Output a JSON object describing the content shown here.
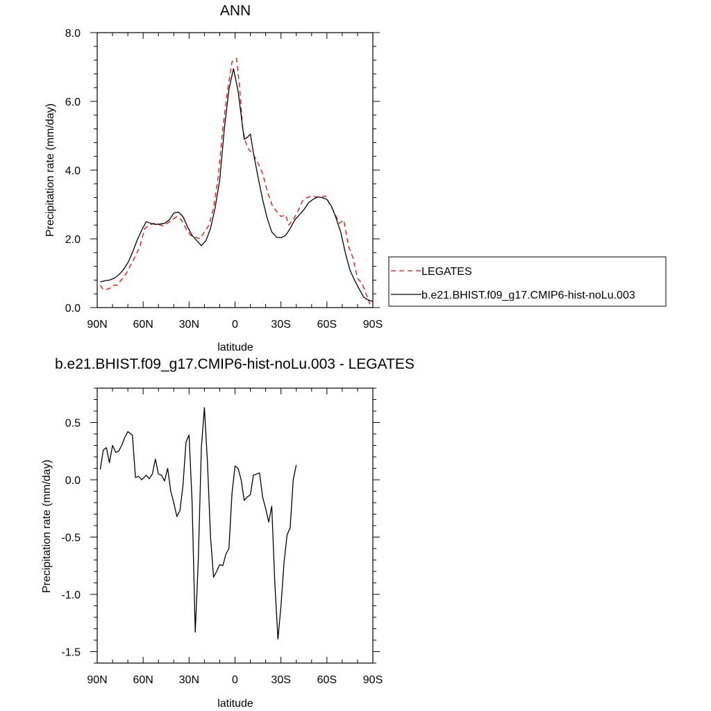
{
  "chart_data": [
    {
      "type": "line",
      "title": "ANN",
      "xlabel": "latitude",
      "ylabel": "Precipitation rate (mm/day)",
      "xlim": [
        90,
        -90
      ],
      "ylim": [
        0,
        8
      ],
      "xticks": [
        {
          "value": 90,
          "label": "90N"
        },
        {
          "value": 60,
          "label": "60N"
        },
        {
          "value": 30,
          "label": "30N"
        },
        {
          "value": 0,
          "label": "0"
        },
        {
          "value": -30,
          "label": "30S"
        },
        {
          "value": -60,
          "label": "60S"
        },
        {
          "value": -90,
          "label": "90S"
        }
      ],
      "yticks": [
        {
          "value": 0,
          "label": "0.0"
        },
        {
          "value": 2,
          "label": "2.0"
        },
        {
          "value": 4,
          "label": "4.0"
        },
        {
          "value": 6,
          "label": "6.0"
        },
        {
          "value": 8,
          "label": "8.0"
        }
      ],
      "legend_position": "right",
      "grid": false,
      "series": [
        {
          "name": "LEGATES",
          "color": "#ff0000",
          "dash": "dashed",
          "points": [
            [
              88,
              0.65
            ],
            [
              86,
              0.52
            ],
            [
              82,
              0.55
            ],
            [
              80,
              0.65
            ],
            [
              77,
              0.65
            ],
            [
              74,
              0.82
            ],
            [
              71,
              1.0
            ],
            [
              68,
              1.25
            ],
            [
              65,
              1.5
            ],
            [
              62,
              1.8
            ],
            [
              59,
              2.3
            ],
            [
              56,
              2.4
            ],
            [
              53,
              2.45
            ],
            [
              50,
              2.42
            ],
            [
              47,
              2.38
            ],
            [
              44,
              2.46
            ],
            [
              41,
              2.55
            ],
            [
              38,
              2.65
            ],
            [
              35,
              2.55
            ],
            [
              32,
              2.3
            ],
            [
              29,
              2.1
            ],
            [
              26,
              2.05
            ],
            [
              23,
              2.0
            ],
            [
              20,
              2.2
            ],
            [
              17,
              2.4
            ],
            [
              14,
              2.9
            ],
            [
              11,
              3.8
            ],
            [
              8,
              5.2
            ],
            [
              5,
              6.3
            ],
            [
              2,
              7.15
            ],
            [
              -1,
              7.25
            ],
            [
              -3,
              6.4
            ],
            [
              -5,
              5.2
            ],
            [
              -7,
              4.8
            ],
            [
              -9,
              4.6
            ],
            [
              -12,
              4.45
            ],
            [
              -15,
              4.2
            ],
            [
              -18,
              3.9
            ],
            [
              -21,
              3.4
            ],
            [
              -24,
              3.0
            ],
            [
              -27,
              2.8
            ],
            [
              -30,
              2.65
            ],
            [
              -33,
              2.7
            ],
            [
              -35,
              2.4
            ],
            [
              -38,
              2.55
            ],
            [
              -41,
              2.8
            ],
            [
              -44,
              3.1
            ],
            [
              -47,
              3.2
            ],
            [
              -50,
              3.25
            ],
            [
              -53,
              3.22
            ],
            [
              -56,
              3.22
            ],
            [
              -59,
              3.25
            ],
            [
              -62,
              3.0
            ],
            [
              -65,
              2.75
            ],
            [
              -68,
              2.45
            ],
            [
              -71,
              2.55
            ],
            [
              -74,
              1.8
            ],
            [
              -77,
              1.45
            ],
            [
              -80,
              0.85
            ],
            [
              -83,
              0.7
            ],
            [
              -86,
              0.35
            ],
            [
              -88,
              0.1
            ]
          ]
        },
        {
          "name": "b.e21.BHIST.f09_g17.CMIP6-hist-noLu.003",
          "color": "#000000",
          "dash": "solid",
          "points": [
            [
              88,
              0.75
            ],
            [
              85,
              0.78
            ],
            [
              82,
              0.8
            ],
            [
              79,
              0.85
            ],
            [
              76,
              0.95
            ],
            [
              73,
              1.1
            ],
            [
              70,
              1.3
            ],
            [
              67,
              1.6
            ],
            [
              64,
              1.95
            ],
            [
              61,
              2.25
            ],
            [
              58,
              2.5
            ],
            [
              55,
              2.45
            ],
            [
              52,
              2.42
            ],
            [
              49,
              2.43
            ],
            [
              46,
              2.45
            ],
            [
              43,
              2.55
            ],
            [
              40,
              2.75
            ],
            [
              37,
              2.78
            ],
            [
              34,
              2.65
            ],
            [
              31,
              2.35
            ],
            [
              28,
              2.1
            ],
            [
              25,
              1.95
            ],
            [
              22,
              1.8
            ],
            [
              19,
              1.95
            ],
            [
              16,
              2.3
            ],
            [
              13,
              2.9
            ],
            [
              10,
              3.7
            ],
            [
              7,
              5.2
            ],
            [
              4,
              6.35
            ],
            [
              1,
              6.95
            ],
            [
              -2,
              6.3
            ],
            [
              -4,
              5.6
            ],
            [
              -6,
              4.9
            ],
            [
              -8,
              4.95
            ],
            [
              -10,
              5.05
            ],
            [
              -12,
              4.5
            ],
            [
              -15,
              3.8
            ],
            [
              -18,
              3.15
            ],
            [
              -21,
              2.6
            ],
            [
              -24,
              2.2
            ],
            [
              -27,
              2.05
            ],
            [
              -30,
              2.03
            ],
            [
              -33,
              2.1
            ],
            [
              -36,
              2.3
            ],
            [
              -39,
              2.55
            ],
            [
              -42,
              2.7
            ],
            [
              -45,
              2.85
            ],
            [
              -48,
              3.05
            ],
            [
              -51,
              3.15
            ],
            [
              -54,
              3.22
            ],
            [
              -57,
              3.2
            ],
            [
              -60,
              3.15
            ],
            [
              -63,
              2.95
            ],
            [
              -66,
              2.6
            ],
            [
              -69,
              2.2
            ],
            [
              -72,
              1.6
            ],
            [
              -75,
              1.1
            ],
            [
              -78,
              0.8
            ],
            [
              -81,
              0.55
            ],
            [
              -84,
              0.3
            ],
            [
              -87,
              0.22
            ],
            [
              -90,
              0.18
            ]
          ]
        }
      ]
    },
    {
      "type": "line",
      "title": "b.e21.BHIST.f09_g17.CMIP6-hist-noLu.003 - LEGATES",
      "xlabel": "latitude",
      "ylabel": "Precipitation rate (mm/day)",
      "xlim": [
        90,
        -90
      ],
      "ylim": [
        -1.6,
        0.8
      ],
      "xticks": [
        {
          "value": 90,
          "label": "90N"
        },
        {
          "value": 60,
          "label": "60N"
        },
        {
          "value": 30,
          "label": "30N"
        },
        {
          "value": 0,
          "label": "0"
        },
        {
          "value": -30,
          "label": "30S"
        },
        {
          "value": -60,
          "label": "60S"
        },
        {
          "value": -90,
          "label": "90S"
        }
      ],
      "yticks": [
        {
          "value": -1.5,
          "label": "-1.5"
        },
        {
          "value": -1.0,
          "label": "-1.0"
        },
        {
          "value": -0.5,
          "label": "-0.5"
        },
        {
          "value": 0.0,
          "label": "0.0"
        },
        {
          "value": 0.5,
          "label": "0.5"
        }
      ],
      "grid": false,
      "series": [
        {
          "color": "#000000",
          "dash": "solid",
          "points": [
            [
              88,
              0.09
            ],
            [
              86,
              0.26
            ],
            [
              84,
              0.28
            ],
            [
              82,
              0.15
            ],
            [
              80,
              0.3
            ],
            [
              78,
              0.24
            ],
            [
              76,
              0.25
            ],
            [
              74,
              0.3
            ],
            [
              72,
              0.37
            ],
            [
              70,
              0.42
            ],
            [
              67,
              0.39
            ],
            [
              65,
              0.02
            ],
            [
              63,
              0.03
            ],
            [
              61,
              0.0
            ],
            [
              58,
              0.04
            ],
            [
              56,
              0.01
            ],
            [
              54,
              0.05
            ],
            [
              52,
              0.18
            ],
            [
              50,
              0.05
            ],
            [
              48,
              0.04
            ],
            [
              46,
              -0.01
            ],
            [
              44,
              0.1
            ],
            [
              42,
              -0.1
            ],
            [
              40,
              -0.2
            ],
            [
              38,
              -0.32
            ],
            [
              36,
              -0.27
            ],
            [
              34,
              -0.05
            ],
            [
              32,
              0.33
            ],
            [
              30,
              0.39
            ],
            [
              28,
              -0.2
            ],
            [
              26,
              -1.33
            ],
            [
              24,
              -0.7
            ],
            [
              22,
              0.28
            ],
            [
              20,
              0.63
            ],
            [
              18,
              0.15
            ],
            [
              16,
              -0.5
            ],
            [
              14,
              -0.85
            ],
            [
              12,
              -0.8
            ],
            [
              10,
              -0.74
            ],
            [
              8,
              -0.75
            ],
            [
              6,
              -0.65
            ],
            [
              4,
              -0.6
            ],
            [
              2,
              -0.12
            ],
            [
              0,
              0.12
            ],
            [
              -2,
              0.1
            ],
            [
              -4,
              0.0
            ],
            [
              -6,
              -0.18
            ],
            [
              -8,
              -0.15
            ],
            [
              -10,
              -0.13
            ],
            [
              -12,
              0.04
            ],
            [
              -14,
              0.05
            ],
            [
              -16,
              0.06
            ],
            [
              -18,
              -0.15
            ],
            [
              -20,
              -0.25
            ],
            [
              -22,
              -0.37
            ],
            [
              -24,
              -0.23
            ],
            [
              -26,
              -0.9
            ],
            [
              -28,
              -1.39
            ],
            [
              -30,
              -1.1
            ],
            [
              -32,
              -0.72
            ],
            [
              -34,
              -0.48
            ],
            [
              -36,
              -0.42
            ],
            [
              -38,
              0.0
            ],
            [
              -40,
              0.13
            ]
          ]
        }
      ]
    }
  ]
}
